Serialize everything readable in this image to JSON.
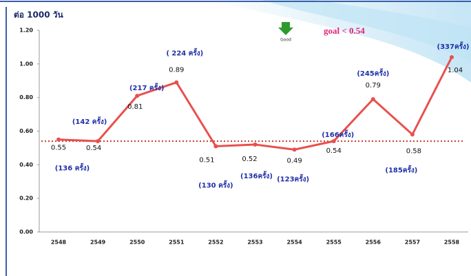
{
  "chart_data": {
    "type": "line",
    "y_axis_title": "ต่อ 1000 วัน",
    "categories": [
      "2548",
      "2549",
      "2550",
      "2551",
      "2552",
      "2553",
      "2554",
      "2555",
      "2556",
      "2557",
      "2558"
    ],
    "values": [
      0.55,
      0.54,
      0.81,
      0.89,
      0.51,
      0.52,
      0.49,
      0.54,
      0.79,
      0.58,
      1.04
    ],
    "annotations": [
      "(136 ครั้ง)",
      "(142 ครั้ง)",
      "(217 ครั้ง)",
      "( 224 ครั้ง)",
      "(130 ครั้ง)",
      "(136ครั้ง)",
      "(123ครั้ง)",
      "(166ครั้ง)",
      "(245ครั้ง)",
      "(185ครั้ง)",
      "(337ครั้ง)"
    ],
    "color": "#e8504e",
    "ylim": [
      0,
      1.2
    ],
    "yticks": [
      {
        "value": 0,
        "label": "0.00"
      },
      {
        "value": 0.2,
        "label": "0.20"
      },
      {
        "value": 0.4,
        "label": "0.40"
      },
      {
        "value": 0.6,
        "label": "0.60"
      },
      {
        "value": 0.8,
        "label": "0.80"
      },
      {
        "value": 1,
        "label": "1.00"
      },
      {
        "value": 1.2,
        "label": "1.20"
      }
    ],
    "goal_value": 0.54,
    "goal_label": "goal  < 0.54",
    "goal_icon_label": "Good",
    "goal_color": "#c0392b"
  }
}
